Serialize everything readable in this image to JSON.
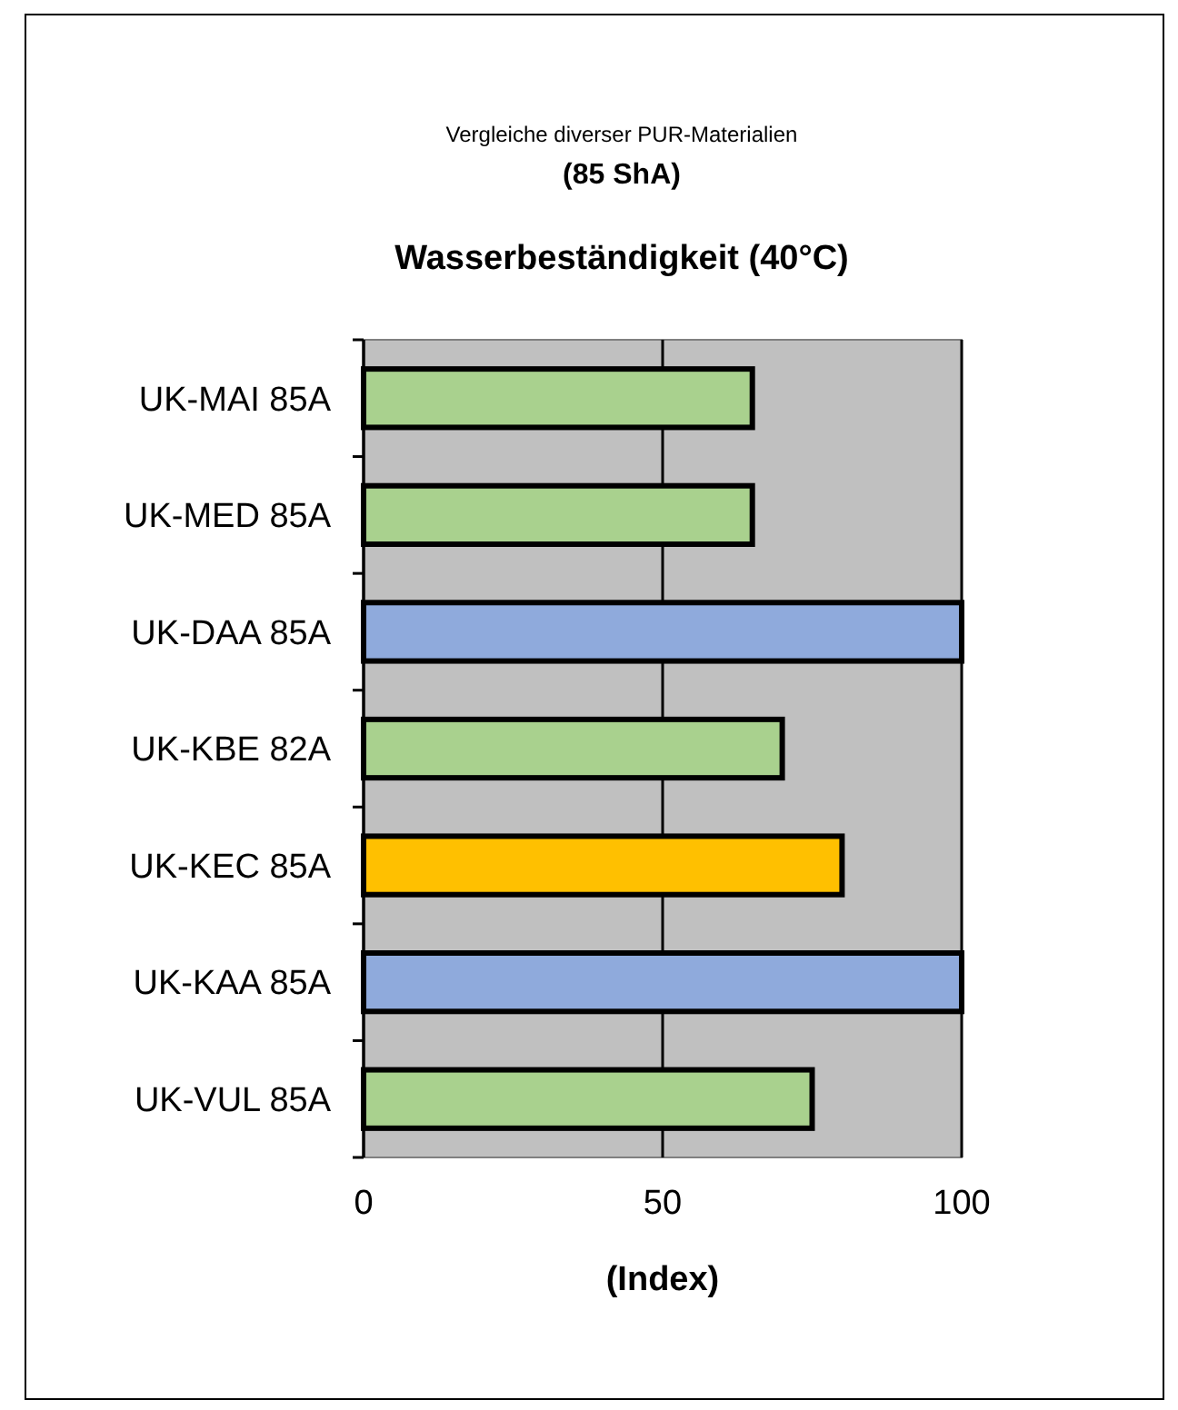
{
  "chart_data": {
    "type": "bar",
    "orientation": "horizontal",
    "title": "Vergleiche diverser PUR-Materialien",
    "subtitle": "(85 ShA)",
    "annotations": [
      "Wasserbeständigkeit (40°C)"
    ],
    "xlabel": "(Index)",
    "categories": [
      "UK-MAI 85A",
      "UK-MED 85A",
      "UK-DAA 85A",
      "UK-KBE 82A",
      "UK-KEC 85A",
      "UK-KAA 85A",
      "UK-VUL 85A"
    ],
    "values": [
      65,
      65,
      100,
      70,
      80,
      100,
      75
    ],
    "colors": [
      "#a9d18e",
      "#a9d18e",
      "#8faadc",
      "#a9d18e",
      "#ffc000",
      "#8faadc",
      "#a9d18e"
    ],
    "xlim": [
      0,
      100
    ],
    "xticks": [
      0,
      50,
      100
    ],
    "grid": "x"
  }
}
